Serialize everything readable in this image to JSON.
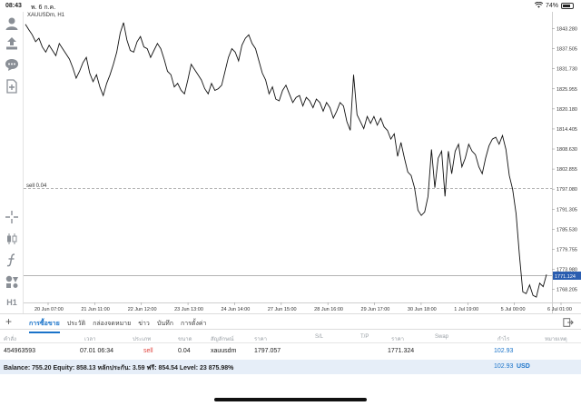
{
  "status_bar": {
    "time": "08:43",
    "date": "พ. 6 ก.ค.",
    "battery": "74%",
    "battery_level": 0.74
  },
  "chart": {
    "symbol": "XAUUSDm, H1",
    "sell_line_label": "sell 0.04",
    "current_price": "1771.124",
    "y_ticks": [
      "1843.280",
      "1837.505",
      "1831.730",
      "1825.955",
      "1820.180",
      "1814.405",
      "1808.630",
      "1802.855",
      "1797.080",
      "1791.305",
      "1785.530",
      "1779.755",
      "1773.980",
      "1768.205"
    ],
    "x_ticks": [
      "20 Jun 07:00",
      "21 Jun 11:00",
      "22 Jun 12:00",
      "23 Jun 13:00",
      "24 Jun 14:00",
      "27 Jun 15:00",
      "28 Jun 16:00",
      "29 Jun 17:00",
      "30 Jun 18:00",
      "1 Jul 19:00",
      "5 Jul 00:00",
      "6 Jul 01:00"
    ]
  },
  "chart_data": {
    "type": "line",
    "title": "XAUUSDm, H1",
    "xlabel": "",
    "ylabel": "",
    "ylim": [
      1765.5,
      1845.5
    ],
    "sell_level": 1797.057,
    "current_level": 1771.124,
    "series": [
      {
        "values": [
          1844.5,
          1843.0,
          1841.5,
          1839.5,
          1840.5,
          1838.0,
          1836.5,
          1838.5,
          1837.0,
          1835.5,
          1839.0,
          1837.5,
          1836.0,
          1834.5,
          1832.0,
          1829.0,
          1831.0,
          1833.5,
          1835.0,
          1830.5,
          1828.0,
          1830.0,
          1826.5,
          1824.0,
          1827.5,
          1830.0,
          1833.0,
          1836.5,
          1842.0,
          1845.0,
          1840.0,
          1837.0,
          1836.5,
          1839.5,
          1841.0,
          1838.0,
          1837.5,
          1835.0,
          1837.0,
          1839.0,
          1837.5,
          1834.5,
          1831.0,
          1830.0,
          1826.5,
          1827.5,
          1825.5,
          1824.5,
          1828.5,
          1833.0,
          1831.5,
          1830.0,
          1828.5,
          1826.0,
          1824.5,
          1827.5,
          1825.5,
          1826.0,
          1827.0,
          1831.0,
          1835.0,
          1837.5,
          1836.5,
          1834.0,
          1838.5,
          1840.5,
          1841.5,
          1839.0,
          1837.5,
          1834.0,
          1830.5,
          1828.5,
          1824.5,
          1826.5,
          1823.0,
          1822.5,
          1825.5,
          1827.0,
          1824.5,
          1822.0,
          1823.5,
          1824.0,
          1821.0,
          1823.5,
          1822.5,
          1820.5,
          1823.0,
          1822.0,
          1819.5,
          1822.0,
          1820.5,
          1817.5,
          1819.5,
          1822.0,
          1821.0,
          1816.5,
          1814.0,
          1830.0,
          1818.5,
          1816.5,
          1814.5,
          1818.0,
          1816.0,
          1818.0,
          1815.5,
          1817.5,
          1815.0,
          1814.0,
          1811.5,
          1813.0,
          1806.5,
          1810.5,
          1806.0,
          1802.0,
          1801.0,
          1797.5,
          1791.0,
          1789.5,
          1790.5,
          1795.0,
          1808.5,
          1797.5,
          1806.0,
          1808.0,
          1795.0,
          1808.0,
          1801.5,
          1808.0,
          1810.0,
          1803.5,
          1806.0,
          1810.0,
          1808.0,
          1807.0,
          1803.5,
          1801.5,
          1806.0,
          1809.5,
          1811.5,
          1812.0,
          1810.0,
          1812.5,
          1808.5,
          1801.0,
          1797.0,
          1790.0,
          1778.0,
          1767.5,
          1767.0,
          1769.5,
          1766.5,
          1766.0,
          1770.0,
          1769.0,
          1772.5
        ]
      }
    ]
  },
  "tabs": {
    "plus": "+",
    "items": [
      "การซื้อขาย",
      "ประวัติ",
      "กล่องจดหมาย",
      "ข่าว",
      "บันทึก",
      "การตั้งค่า"
    ]
  },
  "table": {
    "headers": [
      "คำสั่ง",
      "เวลา",
      "ประเภท",
      "ขนาด",
      "สัญลักษณ์",
      "ราคา",
      "S/L",
      "T/P",
      "ราคา",
      "Swap",
      "กำไร",
      "หมายเหตุ"
    ],
    "row": {
      "order": "454963593",
      "time": "07.01 06:34",
      "type": "sell",
      "size": "0.04",
      "symbol": "xauusdm",
      "price": "1797.057",
      "current_price": "1771.324",
      "profit": "102.93"
    }
  },
  "balance": {
    "text": "Balance: 755.20 Equity: 858.13 หลักประกัน: 3.59 ฟรี: 854.54 Level: 23 875.98%",
    "profit": "102.93",
    "currency": "USD"
  },
  "colors": {
    "accent": "#1a73c9",
    "sell": "#e0443e",
    "price_tag": "#2a5db0"
  }
}
